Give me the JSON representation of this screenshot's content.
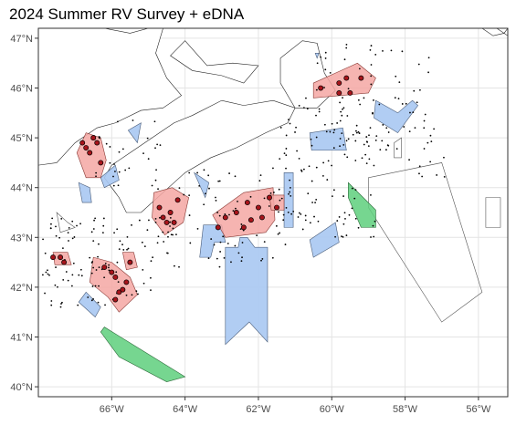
{
  "title": "2024 Summer RV Survey + eDNA",
  "colors": {
    "land_stroke": "#222222",
    "grid": "#e4e4e4",
    "panel_border": "#333333",
    "red_fill": "#f4a7a3",
    "blue_fill": "#a9c8f2",
    "green_fill": "#5ecf7c",
    "edna_point": "#a8141b"
  },
  "map": {
    "lon_range": [
      -68.0,
      -55.2
    ],
    "lat_range": [
      39.8,
      47.2
    ],
    "lon_ticks": [
      -66,
      -64,
      -62,
      -60,
      -58,
      -56
    ],
    "lat_ticks": [
      40,
      41,
      42,
      43,
      44,
      45,
      46,
      47
    ],
    "lon_tick_labels": [
      "66°W",
      "64°W",
      "62°W",
      "60°W",
      "58°W",
      "56°W"
    ],
    "lat_tick_labels": [
      "40°N",
      "41°N",
      "42°N",
      "43°N",
      "44°N",
      "45°N",
      "46°N",
      "47°N"
    ]
  },
  "areas": {
    "red": [
      [
        [
          -66.95,
          44.7
        ],
        [
          -66.7,
          44.2
        ],
        [
          -66.3,
          44.2
        ],
        [
          -66.15,
          44.55
        ],
        [
          -66.3,
          45.0
        ],
        [
          -66.7,
          45.1
        ]
      ],
      [
        [
          -67.6,
          42.7
        ],
        [
          -67.2,
          42.7
        ],
        [
          -67.1,
          42.45
        ],
        [
          -67.55,
          42.45
        ]
      ],
      [
        [
          -66.5,
          42.6
        ],
        [
          -66.0,
          42.5
        ],
        [
          -65.5,
          42.2
        ],
        [
          -65.3,
          41.85
        ],
        [
          -65.8,
          41.5
        ],
        [
          -66.1,
          41.8
        ],
        [
          -66.6,
          42.1
        ]
      ],
      [
        [
          -65.7,
          42.7
        ],
        [
          -65.4,
          42.7
        ],
        [
          -65.3,
          42.4
        ],
        [
          -65.6,
          42.35
        ]
      ],
      [
        [
          -64.85,
          43.9
        ],
        [
          -64.35,
          44.0
        ],
        [
          -63.9,
          43.8
        ],
        [
          -64.05,
          43.3
        ],
        [
          -64.55,
          43.05
        ],
        [
          -64.9,
          43.4
        ]
      ],
      [
        [
          -63.25,
          43.45
        ],
        [
          -62.4,
          43.9
        ],
        [
          -61.6,
          44.0
        ],
        [
          -61.55,
          43.35
        ],
        [
          -61.8,
          43.1
        ],
        [
          -62.9,
          43.0
        ]
      ],
      [
        [
          -61.7,
          43.85
        ],
        [
          -61.3,
          43.85
        ],
        [
          -61.3,
          43.55
        ],
        [
          -61.65,
          43.55
        ]
      ],
      [
        [
          -60.5,
          46.1
        ],
        [
          -59.9,
          46.3
        ],
        [
          -59.3,
          46.5
        ],
        [
          -58.8,
          46.2
        ],
        [
          -59.0,
          45.9
        ],
        [
          -60.5,
          45.8
        ]
      ]
    ],
    "blue": [
      [
        [
          -66.9,
          44.1
        ],
        [
          -66.6,
          44.0
        ],
        [
          -66.55,
          43.7
        ],
        [
          -66.8,
          43.7
        ]
      ],
      [
        [
          -66.3,
          44.2
        ],
        [
          -65.9,
          44.45
        ],
        [
          -65.8,
          44.15
        ],
        [
          -66.2,
          44.0
        ]
      ],
      [
        [
          -65.55,
          45.15
        ],
        [
          -65.2,
          45.3
        ],
        [
          -65.3,
          44.9
        ]
      ],
      [
        [
          -63.75,
          44.3
        ],
        [
          -63.35,
          44.1
        ],
        [
          -63.45,
          43.8
        ]
      ],
      [
        [
          -63.5,
          43.25
        ],
        [
          -63.0,
          43.25
        ],
        [
          -62.9,
          42.9
        ],
        [
          -63.2,
          42.9
        ],
        [
          -63.3,
          42.6
        ],
        [
          -63.6,
          42.6
        ]
      ],
      [
        [
          -62.9,
          42.8
        ],
        [
          -62.55,
          42.8
        ],
        [
          -62.5,
          43.0
        ],
        [
          -62.3,
          43.0
        ],
        [
          -62.1,
          42.8
        ],
        [
          -61.75,
          42.8
        ],
        [
          -61.75,
          40.9
        ],
        [
          -62.25,
          41.3
        ],
        [
          -62.9,
          40.85
        ]
      ],
      [
        [
          -61.3,
          44.3
        ],
        [
          -61.05,
          44.3
        ],
        [
          -61.05,
          43.2
        ],
        [
          -61.3,
          43.2
        ]
      ],
      [
        [
          -60.6,
          45.1
        ],
        [
          -59.7,
          45.2
        ],
        [
          -59.6,
          44.75
        ],
        [
          -60.55,
          44.75
        ]
      ],
      [
        [
          -60.6,
          42.95
        ],
        [
          -59.9,
          43.3
        ],
        [
          -59.8,
          42.9
        ],
        [
          -60.5,
          42.6
        ]
      ],
      [
        [
          -58.8,
          45.75
        ],
        [
          -58.2,
          45.5
        ],
        [
          -57.8,
          45.75
        ],
        [
          -57.65,
          45.65
        ],
        [
          -58.2,
          45.1
        ],
        [
          -58.85,
          45.4
        ]
      ],
      [
        [
          -66.7,
          41.9
        ],
        [
          -66.3,
          41.6
        ],
        [
          -66.45,
          41.4
        ],
        [
          -66.9,
          41.7
        ]
      ],
      [
        [
          -60.45,
          46.7
        ],
        [
          -60.35,
          46.7
        ],
        [
          -60.4,
          46.6
        ]
      ]
    ],
    "green": [
      [
        [
          -59.55,
          44.1
        ],
        [
          -58.8,
          43.55
        ],
        [
          -58.8,
          43.2
        ],
        [
          -59.2,
          43.2
        ],
        [
          -59.55,
          43.8
        ]
      ],
      [
        [
          -66.2,
          41.2
        ],
        [
          -64.0,
          40.2
        ],
        [
          -64.5,
          40.1
        ],
        [
          -65.8,
          40.6
        ],
        [
          -66.3,
          41.1
        ]
      ]
    ],
    "outline": [
      [
        [
          -59.0,
          44.2
        ],
        [
          -57.0,
          44.5
        ],
        [
          -55.9,
          41.9
        ],
        [
          -57.0,
          41.3
        ],
        [
          -59.0,
          43.6
        ]
      ],
      [
        [
          -55.8,
          43.8
        ],
        [
          -55.4,
          43.8
        ],
        [
          -55.4,
          43.2
        ],
        [
          -55.8,
          43.2
        ]
      ],
      [
        [
          -58.3,
          44.9
        ],
        [
          -58.1,
          45.0
        ],
        [
          -58.1,
          44.6
        ],
        [
          -58.3,
          44.6
        ]
      ],
      [
        [
          -67.5,
          43.5
        ],
        [
          -67.2,
          43.3
        ],
        [
          -67.0,
          43.2
        ],
        [
          -67.4,
          43.1
        ]
      ]
    ]
  },
  "edna_points": [
    [
      -66.8,
      44.9
    ],
    [
      -66.6,
      44.7
    ],
    [
      -66.4,
      44.9
    ],
    [
      -66.3,
      44.5
    ],
    [
      -66.7,
      44.8
    ],
    [
      -66.5,
      45.0
    ],
    [
      -67.4,
      42.6
    ],
    [
      -67.3,
      42.5
    ],
    [
      -67.6,
      42.6
    ],
    [
      -66.2,
      42.4
    ],
    [
      -65.9,
      42.2
    ],
    [
      -65.8,
      41.9
    ],
    [
      -65.9,
      41.75
    ],
    [
      -66.0,
      42.3
    ],
    [
      -65.6,
      42.1
    ],
    [
      -65.5,
      42.5
    ],
    [
      -65.7,
      41.95
    ],
    [
      -64.7,
      43.6
    ],
    [
      -64.4,
      43.5
    ],
    [
      -64.2,
      43.75
    ],
    [
      -64.5,
      43.3
    ],
    [
      -64.3,
      43.3
    ],
    [
      -64.6,
      43.4
    ],
    [
      -63.1,
      43.2
    ],
    [
      -62.9,
      43.4
    ],
    [
      -62.6,
      43.5
    ],
    [
      -62.3,
      43.7
    ],
    [
      -62.0,
      43.6
    ],
    [
      -62.4,
      43.2
    ],
    [
      -61.7,
      43.8
    ],
    [
      -61.9,
      43.4
    ],
    [
      -61.5,
      43.6
    ],
    [
      -62.2,
      43.35
    ],
    [
      -60.3,
      46.0
    ],
    [
      -59.8,
      46.1
    ],
    [
      -59.6,
      46.2
    ],
    [
      -59.5,
      45.9
    ],
    [
      -59.2,
      46.2
    ],
    [
      -59.8,
      45.9
    ]
  ],
  "survey_points_seed": 7
}
